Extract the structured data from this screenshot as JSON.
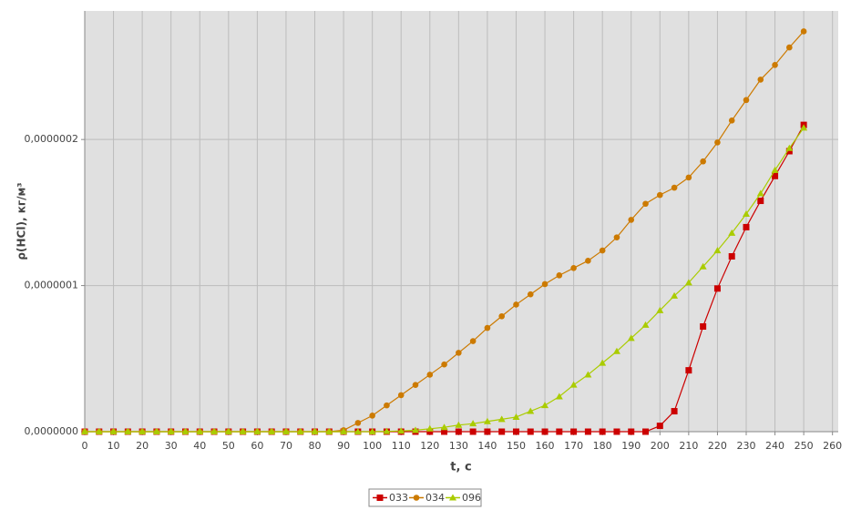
{
  "chart_data": {
    "type": "line",
    "x_label": "t, c",
    "y_label": "ρ(HCl), кг/м³",
    "x": [
      0,
      5,
      10,
      15,
      20,
      25,
      30,
      35,
      40,
      45,
      50,
      55,
      60,
      65,
      70,
      75,
      80,
      85,
      90,
      95,
      100,
      105,
      110,
      115,
      120,
      125,
      130,
      135,
      140,
      145,
      150,
      155,
      160,
      165,
      170,
      175,
      180,
      185,
      190,
      195,
      200,
      205,
      210,
      215,
      220,
      225,
      230,
      235,
      240,
      245,
      250
    ],
    "series": [
      {
        "name": "033",
        "color": "#cc0000",
        "marker": "square",
        "values": [
          0,
          0,
          0,
          0,
          0,
          0,
          0,
          0,
          0,
          0,
          0,
          0,
          0,
          0,
          0,
          0,
          0,
          0,
          0,
          0,
          0,
          0,
          0,
          0,
          0,
          0,
          0,
          0,
          0,
          0,
          0,
          0,
          0,
          0,
          0,
          0,
          0,
          0,
          0,
          0,
          4e-09,
          1.4e-08,
          4.2e-08,
          7.2e-08,
          9.8e-08,
          1.2e-07,
          1.4e-07,
          1.58e-07,
          1.75e-07,
          1.92e-07,
          2.1e-07
        ]
      },
      {
        "name": "034",
        "color": "#cc7a00",
        "marker": "circle",
        "values": [
          0,
          0,
          0,
          0,
          0,
          0,
          0,
          0,
          0,
          0,
          0,
          0,
          0,
          0,
          0,
          0,
          0,
          0,
          1e-09,
          6e-09,
          1.1e-08,
          1.8e-08,
          2.5e-08,
          3.2e-08,
          3.9e-08,
          4.6e-08,
          5.4e-08,
          6.2e-08,
          7.1e-08,
          7.9e-08,
          8.7e-08,
          9.4e-08,
          1.01e-07,
          1.07e-07,
          1.12e-07,
          1.17e-07,
          1.24e-07,
          1.33e-07,
          1.45e-07,
          1.56e-07,
          1.62e-07,
          1.67e-07,
          1.74e-07,
          1.85e-07,
          1.98e-07,
          2.13e-07,
          2.27e-07,
          2.41e-07,
          2.51e-07,
          2.63e-07,
          2.74e-07
        ]
      },
      {
        "name": "096",
        "color": "#aacc00",
        "marker": "triangle",
        "values": [
          0,
          0,
          0,
          0,
          0,
          0,
          0,
          0,
          0,
          0,
          0,
          0,
          0,
          0,
          0,
          0,
          0,
          0,
          0,
          0,
          0,
          2e-10,
          5e-10,
          1e-09,
          2e-09,
          3e-09,
          4.5e-09,
          5.5e-09,
          7e-09,
          8.5e-09,
          1e-08,
          1.4e-08,
          1.8e-08,
          2.4e-08,
          3.2e-08,
          3.9e-08,
          4.7e-08,
          5.5e-08,
          6.4e-08,
          7.3e-08,
          8.3e-08,
          9.3e-08,
          1.02e-07,
          1.13e-07,
          1.24e-07,
          1.36e-07,
          1.49e-07,
          1.63e-07,
          1.79e-07,
          1.94e-07,
          2.08e-07
        ]
      }
    ],
    "xlim": [
      0,
      262
    ],
    "xticks": [
      0,
      10,
      20,
      30,
      40,
      50,
      60,
      70,
      80,
      90,
      100,
      110,
      120,
      130,
      140,
      150,
      160,
      170,
      180,
      190,
      200,
      210,
      220,
      230,
      240,
      250,
      260
    ],
    "ylim": [
      0,
      2.88e-07
    ],
    "yticks": [
      {
        "value": 0,
        "label": "0,0000000"
      },
      {
        "value": 1e-07,
        "label": "0,0000001"
      },
      {
        "value": 2e-07,
        "label": "0,0000002"
      }
    ],
    "grid": true,
    "legend": "bottom"
  }
}
